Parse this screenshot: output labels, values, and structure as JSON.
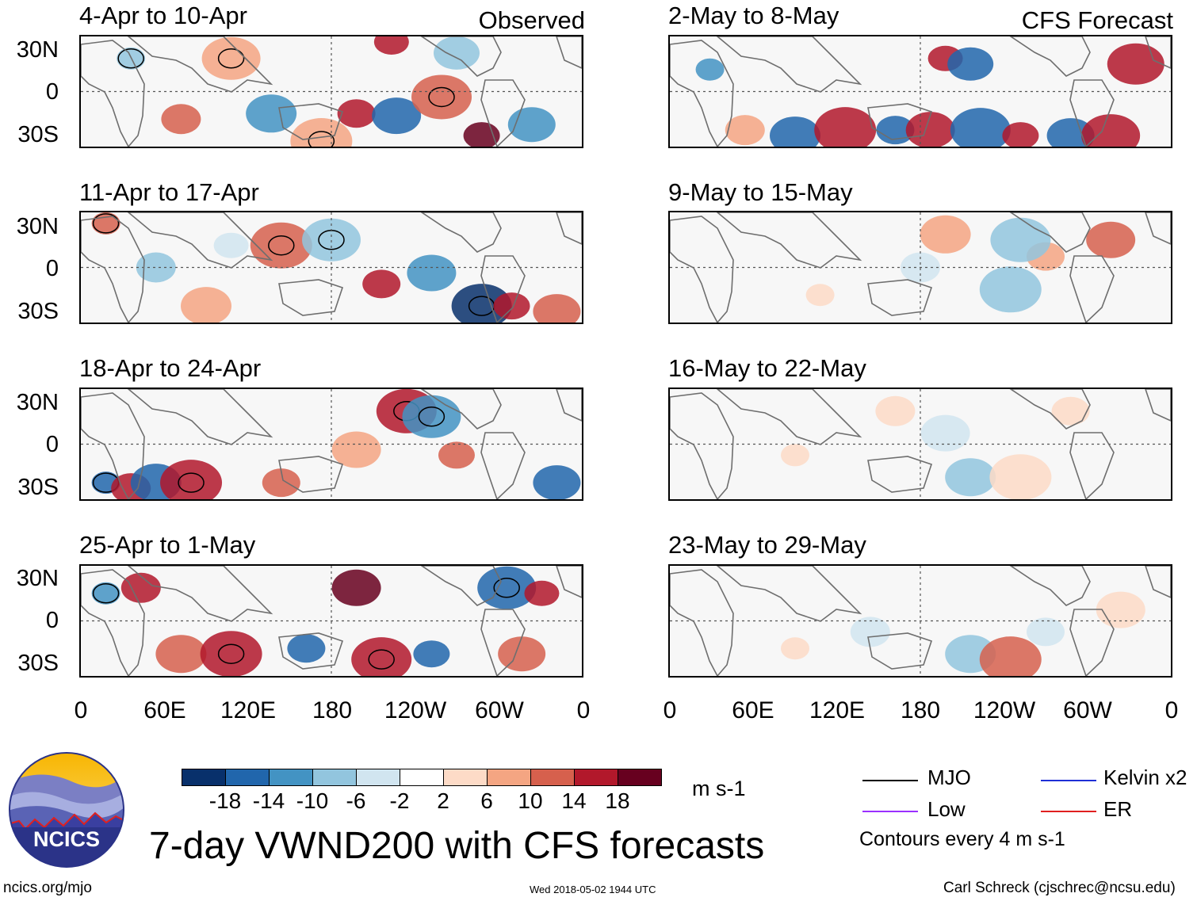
{
  "header": {
    "observed_label": "Observed",
    "forecast_label": "CFS Forecast"
  },
  "panels_left": [
    {
      "title": "4-Apr to 10-Apr"
    },
    {
      "title": "11-Apr to 17-Apr"
    },
    {
      "title": "18-Apr to 24-Apr"
    },
    {
      "title": "25-Apr to 1-May"
    }
  ],
  "panels_right": [
    {
      "title": "2-May to 8-May"
    },
    {
      "title": "9-May to 15-May"
    },
    {
      "title": "16-May to 22-May"
    },
    {
      "title": "23-May to 29-May"
    }
  ],
  "lat_labels": [
    "30N",
    "0",
    "30S"
  ],
  "lon_labels": [
    "0",
    "60E",
    "120E",
    "180",
    "120W",
    "60W",
    "0"
  ],
  "colorbar": {
    "colors": [
      "#08306b",
      "#2166ac",
      "#4393c3",
      "#92c5de",
      "#d1e5f0",
      "#ffffff",
      "#fddbc7",
      "#f4a582",
      "#d6604d",
      "#b2182b",
      "#67001f"
    ],
    "labels": [
      "-18",
      "-14",
      "-10",
      "-6",
      "-2",
      "2",
      "6",
      "10",
      "14",
      "18"
    ],
    "units": "m s-1"
  },
  "legend": {
    "mjo": "MJO",
    "kelvin": "Kelvin x2",
    "low": "Low",
    "er": "ER",
    "contours_note": "Contours every 4 m s-1",
    "mjo_color": "#000000",
    "kelvin_color": "#1f2fd6",
    "low_color": "#9b30ff",
    "er_color": "#e02020"
  },
  "branding": {
    "logo_text": "NCICS",
    "title": "7-day VWND200 with CFS forecasts",
    "url": "ncics.org/mjo",
    "timestamp": "Wed 2018-05-02 1944 UTC",
    "author": "Carl Schreck (cjschrec@ncsu.edu)"
  }
}
